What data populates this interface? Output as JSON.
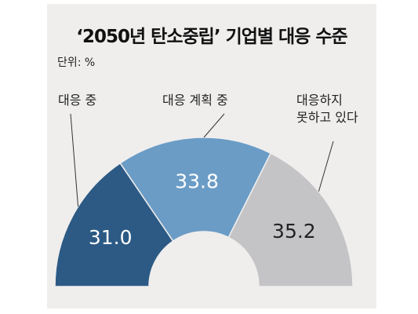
{
  "chart_data": {
    "type": "pie",
    "title": "‘2050년 탄소중립’ 기업별 대응 수준",
    "unit_label": "단위: %",
    "categories": [
      "대응 중",
      "대응 계획 중",
      "대응하지 못하고 있다"
    ],
    "values": [
      31.0,
      33.8,
      35.2
    ],
    "value_labels": [
      "31.0",
      "33.8",
      "35.2"
    ],
    "label_lines": [
      [
        "대응 중"
      ],
      [
        "대응 계획 중"
      ],
      [
        "대응하지",
        "못하고 있다"
      ]
    ],
    "shape": "half-donut",
    "colors": [
      "#2c5a85",
      "#6b9cc6",
      "#c4c4c6"
    ],
    "label_colors": [
      "#ffffff",
      "#ffffff",
      "#222222"
    ]
  }
}
